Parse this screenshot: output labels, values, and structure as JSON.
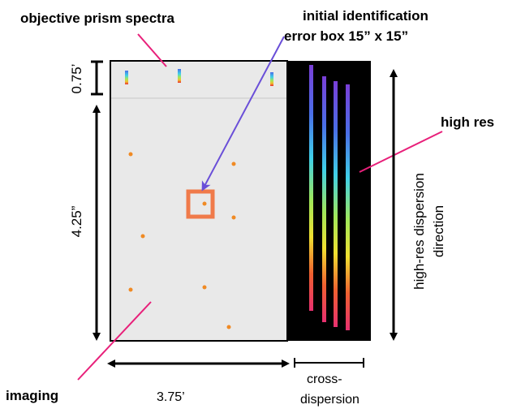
{
  "labels": {
    "objective_prism_spectra": "objective prism spectra",
    "initial_identification_line1": "initial identification",
    "initial_identification_line2": "error box 15” x 15”",
    "high_res": "high res",
    "imaging": "imaging",
    "dim_075": "0.75’",
    "dim_425": "4.25”",
    "dim_375": "3.75’",
    "cross_dispersion_line1": "cross-",
    "cross_dispersion_line2": "dispersion",
    "high_res_dispersion_line1": "high-res dispersion",
    "high_res_dispersion_line2": "direction"
  },
  "colors": {
    "imaging_field": "#e9e9e9",
    "highres_field": "#000000",
    "star": "#f08a24",
    "error_box": "#f07a4a",
    "arrow_blue": "#6a4fd8",
    "pointer_magenta": "#e8207a"
  },
  "spectrum_gradient": [
    "#7a3fd8",
    "#4a6fe8",
    "#3fd0e8",
    "#a0e85a",
    "#f0e030",
    "#f06030",
    "#e83070"
  ]
}
